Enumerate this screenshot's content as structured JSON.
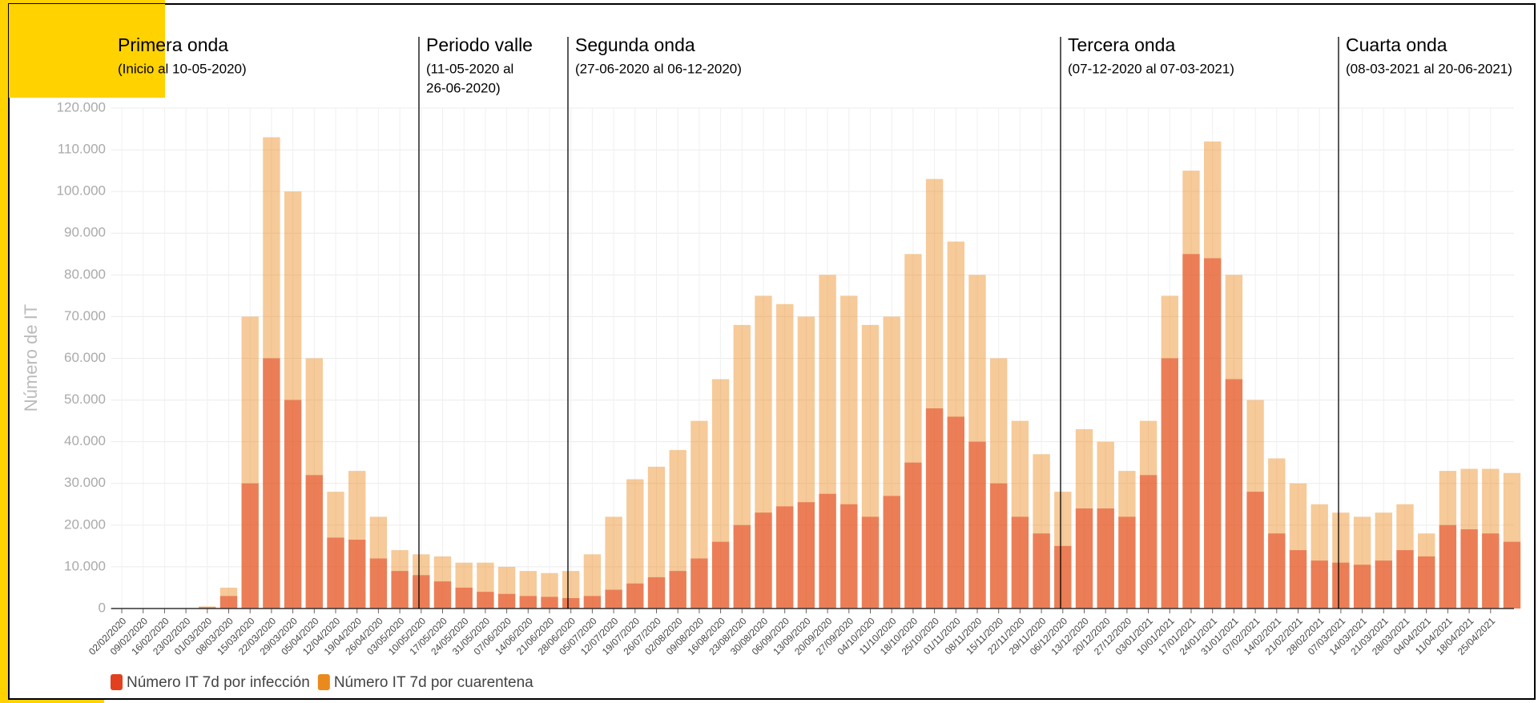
{
  "chart_data": {
    "type": "bar",
    "y_axis_label": "Número de IT",
    "ylim": [
      0,
      120000
    ],
    "yticks": [
      0,
      {
        "value": 10000,
        "label": "10.000"
      },
      {
        "value": 20000,
        "label": "20.000"
      },
      {
        "value": 30000,
        "label": "30.000"
      },
      {
        "value": 40000,
        "label": "40.000"
      },
      {
        "value": 50000,
        "label": "50.000"
      },
      {
        "value": 60000,
        "label": "60.000"
      },
      {
        "value": 70000,
        "label": "70.000"
      },
      {
        "value": 80000,
        "label": "80.000"
      },
      {
        "value": 90000,
        "label": "90.000"
      },
      {
        "value": 100000,
        "label": "100.000"
      },
      {
        "value": 110000,
        "label": "110.000"
      },
      {
        "value": 120000,
        "label": "120.000"
      }
    ],
    "grid": true,
    "categories": [
      "02/02/2020",
      "09/02/2020",
      "16/02/2020",
      "23/02/2020",
      "01/03/2020",
      "08/03/2020",
      "15/03/2020",
      "22/03/2020",
      "29/03/2020",
      "05/04/2020",
      "12/04/2020",
      "19/04/2020",
      "26/04/2020",
      "03/05/2020",
      "10/05/2020",
      "17/05/2020",
      "24/05/2020",
      "31/05/2020",
      "07/06/2020",
      "14/06/2020",
      "21/06/2020",
      "28/06/2020",
      "05/07/2020",
      "12/07/2020",
      "19/07/2020",
      "26/07/2020",
      "02/08/2020",
      "09/08/2020",
      "16/08/2020",
      "23/08/2020",
      "30/08/2020",
      "06/09/2020",
      "13/09/2020",
      "20/09/2020",
      "27/09/2020",
      "04/10/2020",
      "11/10/2020",
      "18/10/2020",
      "25/10/2020",
      "01/11/2020",
      "08/11/2020",
      "15/11/2020",
      "22/11/2020",
      "29/11/2020",
      "06/12/2020",
      "13/12/2020",
      "20/12/2020",
      "27/12/2020",
      "03/01/2021",
      "10/01/2021",
      "17/01/2021",
      "24/01/2021",
      "31/01/2021",
      "07/02/2021",
      "14/02/2021",
      "21/02/2021",
      "28/02/2021",
      "07/03/2021",
      "14/03/2021",
      "21/03/2021",
      "28/03/2021",
      "04/04/2021",
      "11/04/2021",
      "18/04/2021",
      "25/04/2021",
      null
    ],
    "series": [
      {
        "name": "Número IT 7d por infección",
        "color": "#e2401f",
        "values": [
          0,
          0,
          0,
          0,
          300,
          3000,
          30000,
          60000,
          50000,
          32000,
          17000,
          16500,
          12000,
          9000,
          8000,
          6500,
          5000,
          4000,
          3500,
          3000,
          2800,
          2500,
          3000,
          4500,
          6000,
          7500,
          9000,
          12000,
          16000,
          20000,
          23000,
          24500,
          25500,
          27500,
          25000,
          22000,
          27000,
          35000,
          48000,
          46000,
          40000,
          30000,
          22000,
          18000,
          15000,
          24000,
          24000,
          22000,
          32000,
          60000,
          85000,
          84000,
          55000,
          28000,
          18000,
          14000,
          11500,
          11000,
          10500,
          11500,
          14000,
          12500,
          20000,
          19000,
          18000,
          16000
        ]
      },
      {
        "name": "Número IT 7d por cuarentena",
        "color": "#ea8a1c",
        "values": [
          0,
          0,
          0,
          0,
          500,
          5000,
          70000,
          113000,
          100000,
          60000,
          28000,
          33000,
          22000,
          14000,
          13000,
          12500,
          11000,
          11000,
          10000,
          9000,
          8500,
          9000,
          13000,
          22000,
          31000,
          34000,
          38000,
          45000,
          55000,
          68000,
          75000,
          73000,
          70000,
          80000,
          75000,
          68000,
          70000,
          85000,
          103000,
          88000,
          80000,
          60000,
          45000,
          37000,
          28000,
          43000,
          40000,
          33000,
          45000,
          75000,
          105000,
          112000,
          80000,
          50000,
          36000,
          30000,
          25000,
          23000,
          22000,
          23000,
          25000,
          18000,
          33000,
          33500,
          33500,
          32500
        ]
      }
    ],
    "annotations": [
      {
        "title": "Primera onda",
        "lines": [
          "(Inicio al 10-05-2020)"
        ]
      },
      {
        "title": "Periodo valle",
        "lines": [
          "(11-05-2020 al",
          "26-06-2020)"
        ]
      },
      {
        "title": "Segunda onda",
        "lines": [
          "(27-06-2020 al 06-12-2020)"
        ]
      },
      {
        "title": "Tercera onda",
        "lines": [
          "(07-12-2020 al 07-03-2021)"
        ]
      },
      {
        "title": "Cuarta onda",
        "lines": [
          "(08-03-2021 al 20-06-2021)"
        ]
      }
    ]
  }
}
